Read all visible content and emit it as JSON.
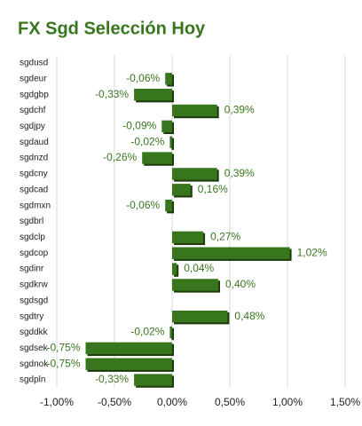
{
  "chart_data": {
    "type": "hbar",
    "title": "FX Sgd Selección Hoy",
    "categories": [
      "sgdusd",
      "sgdeur",
      "sgdgbp",
      "sgdchf",
      "sgdjpy",
      "sgdaud",
      "sgdnzd",
      "sgdcny",
      "sgdcad",
      "sgdmxn",
      "sgdbrl",
      "sgdclp",
      "sgdcop",
      "sgdinr",
      "sgdkrw",
      "sgdsgd",
      "sgdtry",
      "sgddkk",
      "sgdsek",
      "sgdnok",
      "sgdpln"
    ],
    "values": [
      null,
      -0.06,
      -0.33,
      0.39,
      -0.09,
      -0.02,
      -0.26,
      0.39,
      0.16,
      -0.06,
      null,
      0.27,
      1.02,
      0.04,
      0.4,
      null,
      0.48,
      -0.02,
      -0.75,
      -0.75,
      -0.33
    ],
    "value_labels": [
      null,
      "-0,06%",
      "-0,33%",
      "0,39%",
      "-0,09%",
      "-0,02%",
      "-0,26%",
      "0,39%",
      "0,16%",
      "-0,06%",
      null,
      "0,27%",
      "1,02%",
      "0,04%",
      "0,40%",
      null,
      "0,48%",
      "-0,02%",
      "-0,75%",
      "-0,75%",
      "-0,33%"
    ],
    "color": "#38761d",
    "xlim": [
      -1,
      1.5
    ],
    "xticks": [
      {
        "value": -1,
        "label": "-1,00%"
      },
      {
        "value": -0.5,
        "label": "-0,50%"
      },
      {
        "value": 0,
        "label": "0,00%"
      },
      {
        "value": 0.5,
        "label": "0,50%"
      },
      {
        "value": 1,
        "label": "1,00%"
      },
      {
        "value": 1.5,
        "label": "1,50%"
      }
    ],
    "grid": true
  }
}
